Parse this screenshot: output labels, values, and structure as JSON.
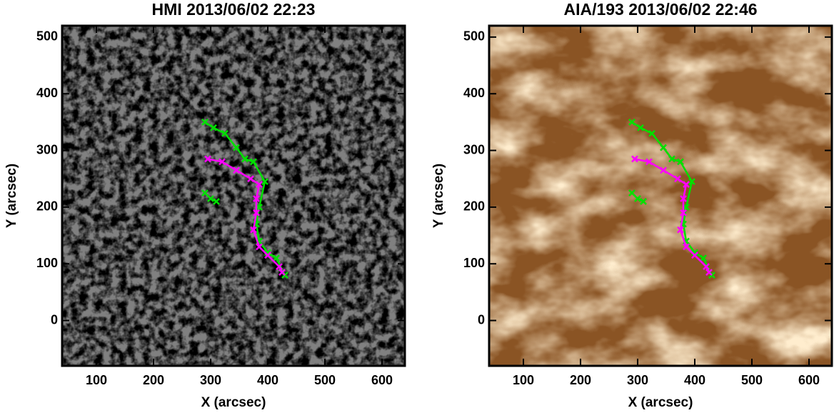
{
  "chart_data": [
    {
      "type": "line",
      "title": "HMI 2013/06/02 22:23",
      "xlabel": "X (arcsec)",
      "ylabel": "Y (arcsec)",
      "xlim": [
        40,
        640
      ],
      "ylim": [
        -80,
        520
      ],
      "xticks": [
        100,
        200,
        300,
        400,
        500,
        600
      ],
      "yticks": [
        0,
        100,
        200,
        300,
        400,
        500
      ],
      "background": "#808080",
      "series": [
        {
          "color": "#00e000",
          "x": [
            290,
            305,
            325,
            345,
            360,
            375,
            395,
            385,
            380,
            385,
            400,
            415,
            430
          ],
          "values": [
            350,
            340,
            330,
            305,
            285,
            280,
            245,
            200,
            170,
            140,
            120,
            110,
            80
          ]
        },
        {
          "color": "#ff00ff",
          "x": [
            295,
            320,
            345,
            370,
            385,
            380,
            380,
            375,
            385,
            400,
            420,
            425
          ],
          "values": [
            285,
            280,
            265,
            250,
            240,
            215,
            190,
            160,
            130,
            115,
            95,
            85
          ]
        },
        {
          "color": "#00e000",
          "x": [
            290,
            300,
            310
          ],
          "values": [
            225,
            215,
            210
          ]
        }
      ]
    },
    {
      "type": "line",
      "title": "AIA/193 2013/06/02 22:46",
      "xlabel": "X (arcsec)",
      "ylabel": "Y (arcsec)",
      "xlim": [
        40,
        640
      ],
      "ylim": [
        -80,
        520
      ],
      "xticks": [
        100,
        200,
        300,
        400,
        500,
        600
      ],
      "yticks": [
        0,
        100,
        200,
        300,
        400,
        500
      ],
      "background": "#8a5424",
      "series": [
        {
          "color": "#00e000",
          "x": [
            290,
            305,
            325,
            345,
            360,
            375,
            395,
            385,
            380,
            385,
            400,
            415,
            430
          ],
          "values": [
            350,
            340,
            330,
            305,
            285,
            280,
            245,
            200,
            170,
            140,
            120,
            110,
            80
          ]
        },
        {
          "color": "#ff00ff",
          "x": [
            295,
            320,
            345,
            370,
            385,
            380,
            380,
            375,
            385,
            400,
            420,
            425
          ],
          "values": [
            285,
            280,
            265,
            250,
            240,
            215,
            190,
            160,
            130,
            115,
            95,
            85
          ]
        },
        {
          "color": "#00e000",
          "x": [
            290,
            300,
            310
          ],
          "values": [
            225,
            215,
            210
          ]
        }
      ]
    }
  ]
}
